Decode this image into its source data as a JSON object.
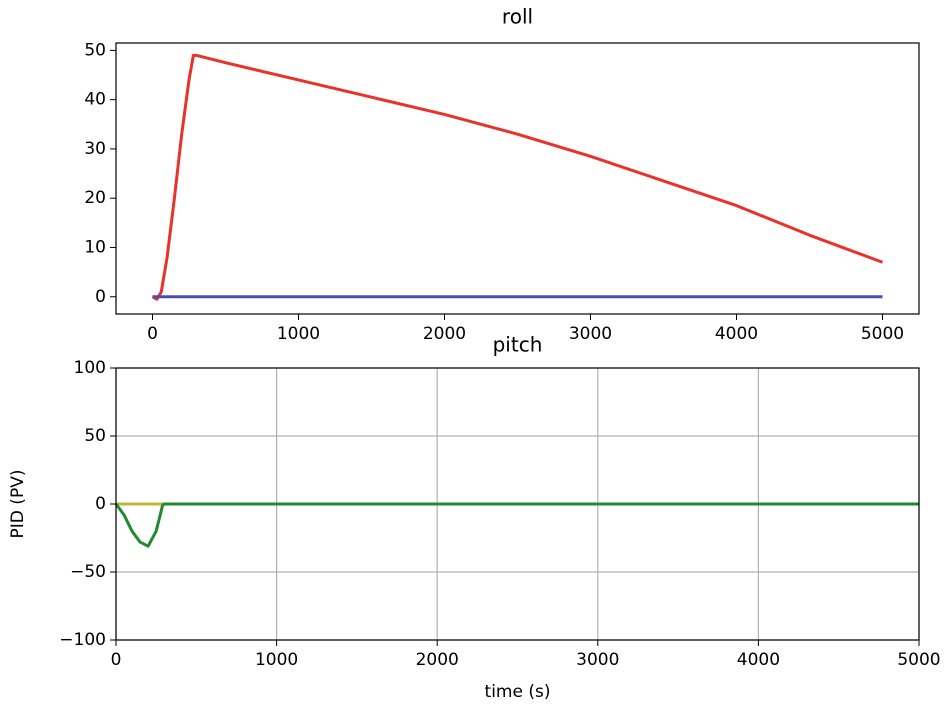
{
  "chart_data": [
    {
      "type": "line",
      "title": "roll",
      "xlim": [
        -250,
        5250
      ],
      "xticks": [
        0,
        1000,
        2000,
        3000,
        4000,
        5000
      ],
      "ylim": [
        -3.5,
        51.5
      ],
      "yticks": [
        0,
        10,
        20,
        30,
        40,
        50
      ],
      "grid": false,
      "series": [
        {
          "color": "#e8322a",
          "x": [
            0,
            30,
            60,
            100,
            150,
            200,
            250,
            280,
            300,
            500,
            1000,
            1500,
            2000,
            2500,
            3000,
            3500,
            4000,
            4500,
            5000
          ],
          "values": [
            0,
            -0.5,
            1,
            8,
            20,
            33,
            44,
            49,
            49,
            47.5,
            44,
            40.5,
            37,
            33,
            28.5,
            23.5,
            18.5,
            12.5,
            7
          ]
        },
        {
          "color": "#4b4fb0",
          "x": [
            0,
            5000
          ],
          "values": [
            0,
            0
          ]
        }
      ]
    },
    {
      "type": "line",
      "title": "pitch",
      "x_label": "time (s)",
      "y_label": "PID (PV)",
      "xlim": [
        0,
        5000
      ],
      "xticks": [
        0,
        1000,
        2000,
        3000,
        4000,
        5000
      ],
      "ylim": [
        -100,
        100
      ],
      "yticks": [
        {
          "value": -100,
          "label": "−100"
        },
        {
          "value": -50,
          "label": "−50"
        },
        0,
        50,
        100
      ],
      "grid": true,
      "series": [
        {
          "color": "#c8b43a",
          "x": [
            0,
            5000
          ],
          "values": [
            0,
            0
          ]
        },
        {
          "color": "#1f8a2e",
          "x": [
            0,
            50,
            100,
            150,
            200,
            250,
            290,
            300,
            5000
          ],
          "values": [
            0,
            -8,
            -20,
            -28,
            -31,
            -20,
            -1,
            0,
            0
          ]
        }
      ]
    }
  ]
}
